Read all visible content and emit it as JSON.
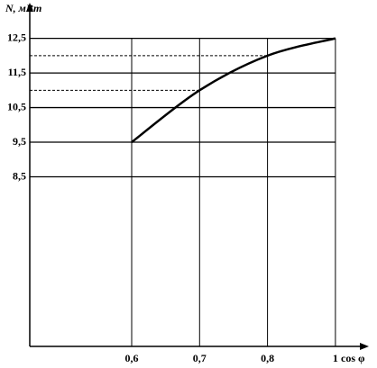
{
  "chart_data": {
    "type": "line",
    "y_label": "N, мВт",
    "x_label": "cos φ",
    "categories": [
      "0,6",
      "0,7",
      "0,8",
      "1"
    ],
    "series": [
      {
        "name": "N",
        "color": "#000000",
        "values": [
          9.5,
          11,
          12,
          12.5
        ]
      }
    ],
    "ylim": [
      3.6,
      13.4
    ],
    "yticks": [
      {
        "value": 8.5,
        "label": "8,5"
      },
      {
        "value": 9.5,
        "label": "9,5"
      },
      {
        "value": 10.5,
        "label": "10,5"
      },
      {
        "value": 11.5,
        "label": "11,5"
      },
      {
        "value": 12.5,
        "label": "12,5"
      }
    ],
    "grid": true
  }
}
